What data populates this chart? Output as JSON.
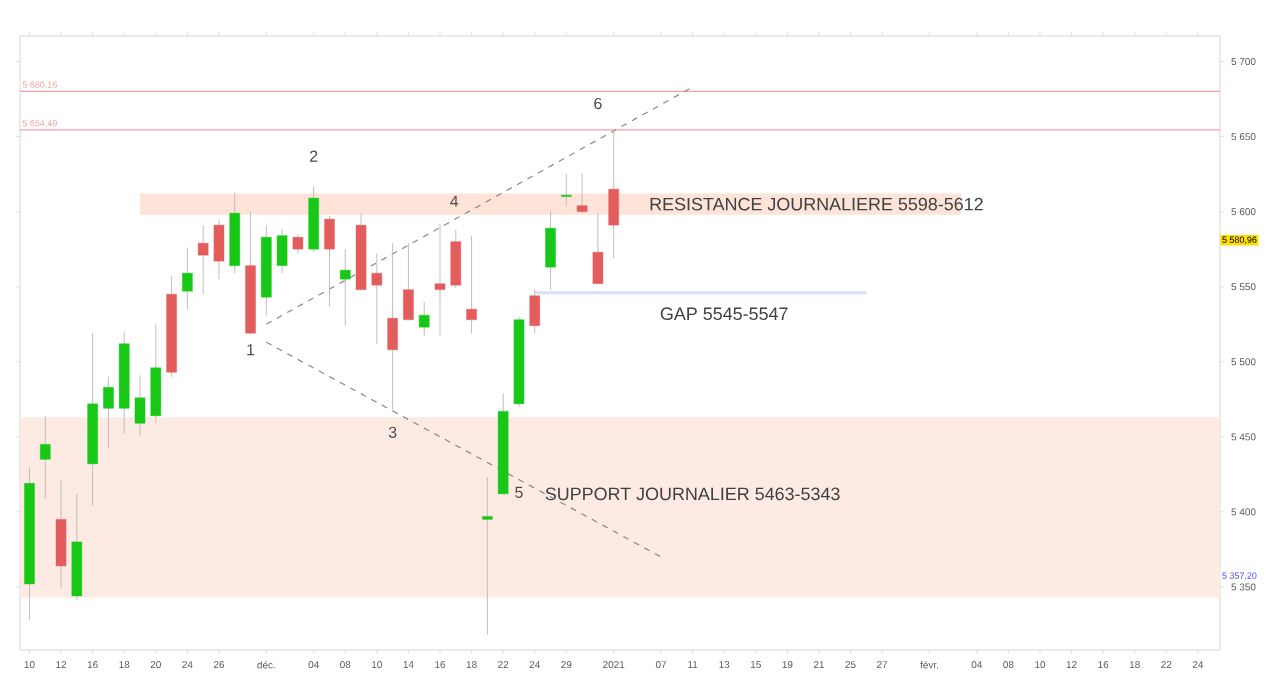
{
  "chart_data": {
    "type": "candlestick",
    "categories": [
      "10",
      null,
      "12",
      null,
      "16",
      null,
      "18",
      null,
      "20",
      null,
      "24",
      null,
      "26",
      null,
      null,
      "déc.",
      null,
      null,
      "04",
      null,
      "08",
      null,
      "10",
      null,
      "14",
      null,
      "16",
      null,
      "18",
      null,
      "22",
      null,
      "24",
      null,
      "29",
      null,
      null,
      "2021",
      null,
      null,
      "07",
      null,
      "11",
      null,
      "13",
      null,
      "15",
      null,
      "19",
      null,
      "21",
      null,
      "25",
      null,
      "27",
      null,
      null,
      "févr.",
      null,
      null,
      "04",
      null,
      "08",
      null,
      "10",
      null,
      "12",
      null,
      "16",
      null,
      "18",
      null,
      "22",
      null,
      "24"
    ],
    "ohlc": [
      [
        5352,
        5430,
        5328,
        5419
      ],
      [
        5435,
        5464,
        5409,
        5445
      ],
      [
        5395,
        5421,
        5349,
        5364
      ],
      [
        5344,
        5412,
        5341,
        5380
      ],
      [
        5432,
        5519,
        5404,
        5472
      ],
      [
        5469,
        5490,
        5443,
        5483
      ],
      [
        5469,
        5520,
        5452,
        5512
      ],
      [
        5459,
        5491,
        5451,
        5476
      ],
      [
        5464,
        5525,
        5459,
        5496
      ],
      [
        5545,
        5557,
        5490,
        5493
      ],
      [
        5547,
        5576,
        5535,
        5559
      ],
      [
        5579,
        5591,
        5545,
        5571
      ],
      [
        5591,
        5595,
        5555,
        5567
      ],
      [
        5564,
        5613,
        5559,
        5599
      ],
      [
        5564,
        5600,
        5519,
        5519
      ],
      [
        5543,
        5591,
        5531,
        5583
      ],
      [
        5564,
        5588,
        5559,
        5584
      ],
      [
        5583,
        5585,
        5572,
        5575
      ],
      [
        5575,
        5617,
        5573,
        5609
      ],
      [
        5595,
        5597,
        5537,
        5575
      ],
      [
        5555,
        5575,
        5524,
        5561
      ],
      [
        5591,
        5599,
        5548,
        5548
      ],
      [
        5559,
        5572,
        5512,
        5551
      ],
      [
        5529,
        5579,
        5468,
        5508
      ],
      [
        5548,
        5579,
        5528,
        5528
      ],
      [
        5523,
        5540,
        5517,
        5531
      ],
      [
        5552,
        5592,
        5517,
        5548
      ],
      [
        5580,
        5588,
        5549,
        5551
      ],
      [
        5535,
        5584,
        5519,
        5528
      ],
      [
        5395,
        5423,
        5318,
        5397
      ],
      [
        5412,
        5479,
        5412,
        5467
      ],
      [
        5472,
        5530,
        5470,
        5528
      ],
      [
        5544,
        5548,
        5519,
        5524
      ],
      [
        5563,
        5601,
        5548,
        5589
      ],
      [
        5610,
        5625,
        5604,
        5611
      ],
      [
        5604,
        5625,
        5599,
        5600
      ],
      [
        5573,
        5599,
        5552,
        5552
      ],
      [
        5615,
        5654,
        5569,
        5591
      ],
      null,
      null,
      null,
      null,
      null,
      null,
      null,
      null,
      null,
      null,
      null,
      null,
      null,
      null,
      null,
      null,
      null,
      null,
      null,
      null,
      null,
      null,
      null,
      null,
      null,
      null,
      null,
      null,
      null,
      null,
      null,
      null,
      null,
      null,
      null,
      null,
      null
    ],
    "colors": [
      "#17c817",
      "#17c817",
      "#e35d5d",
      "#17c817",
      "#17c817",
      "#17c817",
      "#17c817",
      "#17c817",
      "#17c817",
      "#e35d5d",
      "#17c817",
      "#e35d5d",
      "#e35d5d",
      "#17c817",
      "#e35d5d",
      "#17c817",
      "#17c817",
      "#e35d5d",
      "#17c817",
      "#e35d5d",
      "#17c817",
      "#e35d5d",
      "#e35d5d",
      "#e35d5d",
      "#e35d5d",
      "#17c817",
      "#e35d5d",
      "#e35d5d",
      "#e35d5d",
      "#17c817",
      "#17c817",
      "#17c817",
      "#e35d5d",
      "#17c817",
      "#17c817",
      "#e35d5d",
      "#e35d5d",
      "#e35d5d",
      null,
      null,
      null,
      null,
      null,
      null,
      null,
      null,
      null,
      null,
      null,
      null,
      null,
      null,
      null,
      null,
      null,
      null,
      null,
      null,
      null,
      null,
      null,
      null,
      null,
      null,
      null,
      null,
      null,
      null,
      null,
      null,
      null,
      null,
      null,
      null,
      null
    ],
    "series": [
      {
        "type": "line",
        "x": [
          "déc.",
          "11"
        ],
        "values": [
          5525,
          5683
        ],
        "color": "#888888",
        "line_style": "dashed"
      },
      {
        "type": "line",
        "x": [
          "déc.",
          "07"
        ],
        "values": [
          5513,
          5370
        ],
        "color": "#888888",
        "line_style": "dashed"
      }
    ],
    "ylim": [
      5308,
      5717
    ],
    "yticks": [
      {
        "value": 5350,
        "label": "5 350"
      },
      {
        "value": 5400,
        "label": "5 400"
      },
      {
        "value": 5450,
        "label": "5 450"
      },
      {
        "value": 5500,
        "label": "5 500"
      },
      {
        "value": 5550,
        "label": "5 550"
      },
      {
        "value": 5600,
        "label": "5 600"
      },
      {
        "value": 5650,
        "label": "5 650"
      },
      {
        "value": 5700,
        "label": "5 700"
      }
    ],
    "bands": [
      {
        "axis": "y",
        "from": 5598,
        "to": 5612,
        "label": "RESISTANCE JOURNALIERE 5598-5612",
        "color": "#fde3d8"
      },
      {
        "axis": "y",
        "from": 5545,
        "to": 5547,
        "label": "GAP 5545-5547",
        "color": "#d6e0f8"
      },
      {
        "axis": "y",
        "from": 5343,
        "to": 5463,
        "label": "SUPPORT JOURNALIER 5463-5343",
        "color": "#fdeae2"
      }
    ],
    "ref_lines": [
      {
        "axis": "y",
        "value": 5680.16,
        "label": "5 680,16",
        "color": "#f4a0a0"
      },
      {
        "axis": "y",
        "value": 5654.49,
        "label": "5 654,49",
        "color": "#f4a0a0"
      }
    ],
    "annotations": [
      "1",
      "2",
      "3",
      "4",
      "5",
      "6",
      "5 580,96",
      "5 357,20"
    ],
    "grid": false
  }
}
